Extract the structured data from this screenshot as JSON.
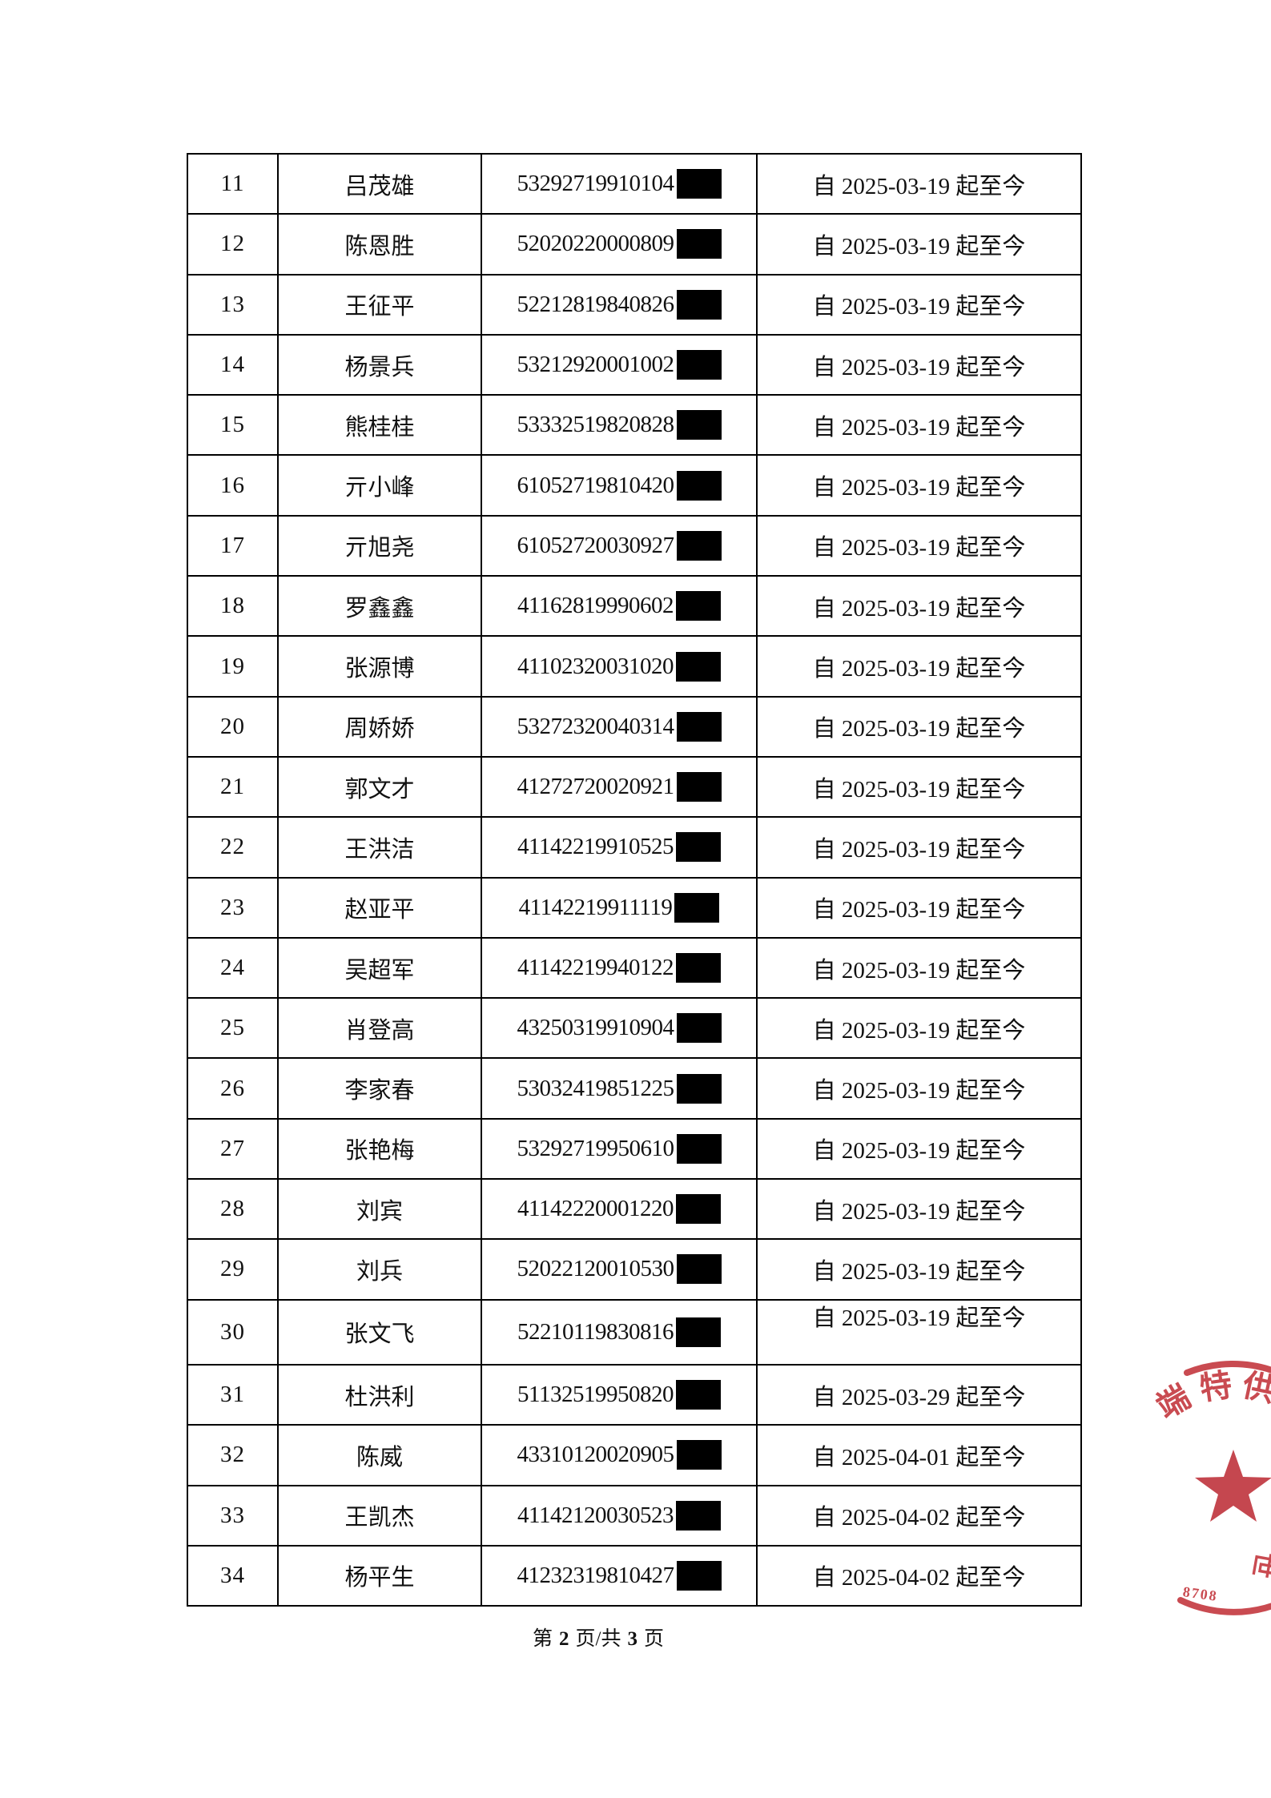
{
  "table": {
    "rows": [
      {
        "no": "11",
        "name": "吕茂雄",
        "id": "53292719910104",
        "period": "自 2025-03-19 起至今"
      },
      {
        "no": "12",
        "name": "陈恩胜",
        "id": "52020220000809",
        "period": "自 2025-03-19 起至今"
      },
      {
        "no": "13",
        "name": "王征平",
        "id": "52212819840826",
        "period": "自 2025-03-19 起至今"
      },
      {
        "no": "14",
        "name": "杨景兵",
        "id": "53212920001002",
        "period": "自 2025-03-19 起至今"
      },
      {
        "no": "15",
        "name": "熊桂桂",
        "id": "53332519820828",
        "period": "自 2025-03-19 起至今"
      },
      {
        "no": "16",
        "name": "亓小峰",
        "id": "61052719810420",
        "period": "自 2025-03-19 起至今"
      },
      {
        "no": "17",
        "name": "亓旭尧",
        "id": "61052720030927",
        "period": "自 2025-03-19 起至今"
      },
      {
        "no": "18",
        "name": "罗鑫鑫",
        "id": "41162819990602",
        "period": "自 2025-03-19 起至今"
      },
      {
        "no": "19",
        "name": "张源博",
        "id": "41102320031020",
        "period": "自 2025-03-19 起至今"
      },
      {
        "no": "20",
        "name": "周娇娇",
        "id": "53272320040314",
        "period": "自 2025-03-19 起至今"
      },
      {
        "no": "21",
        "name": "郭文才",
        "id": "41272720020921",
        "period": "自 2025-03-19 起至今"
      },
      {
        "no": "22",
        "name": "王洪洁",
        "id": "41142219910525",
        "period": "自 2025-03-19 起至今"
      },
      {
        "no": "23",
        "name": "赵亚平",
        "id": "41142219911119",
        "period": "自 2025-03-19 起至今"
      },
      {
        "no": "24",
        "name": "吴超军",
        "id": "41142219940122",
        "period": "自 2025-03-19 起至今"
      },
      {
        "no": "25",
        "name": "肖登高",
        "id": "43250319910904",
        "period": "自 2025-03-19 起至今"
      },
      {
        "no": "26",
        "name": "李家春",
        "id": "53032419851225",
        "period": "自 2025-03-19 起至今"
      },
      {
        "no": "27",
        "name": "张艳梅",
        "id": "53292719950610",
        "period": "自 2025-03-19 起至今"
      },
      {
        "no": "28",
        "name": "刘宾",
        "id": "41142220001220",
        "period": "自 2025-03-19 起至今"
      },
      {
        "no": "29",
        "name": "刘兵",
        "id": "52022120010530",
        "period": "自 2025-03-19 起至今"
      },
      {
        "no": "30",
        "name": "张文飞",
        "id": "52210119830816",
        "period": "自 2025-03-19 起至今",
        "date_top": true
      },
      {
        "no": "31",
        "name": "杜洪利",
        "id": "51132519950820",
        "period": "自 2025-03-29 起至今"
      },
      {
        "no": "32",
        "name": "陈威",
        "id": "43310120020905",
        "period": "自 2025-04-01 起至今"
      },
      {
        "no": "33",
        "name": "王凯杰",
        "id": "41142120030523",
        "period": "自 2025-04-02 起至今"
      },
      {
        "no": "34",
        "name": "杨平生",
        "id": "41232319810427",
        "period": "自 2025-04-02 起至今"
      }
    ]
  },
  "footer": {
    "prefix": "第",
    "page": "2",
    "mid": "页/共",
    "total": "3",
    "suffix": "页"
  },
  "stamp": {
    "arc_text": "端特供",
    "arc_chars": [
      "端",
      "特",
      "供"
    ],
    "digits": "8708",
    "fragment_char": "世",
    "color": "#c4383f"
  }
}
